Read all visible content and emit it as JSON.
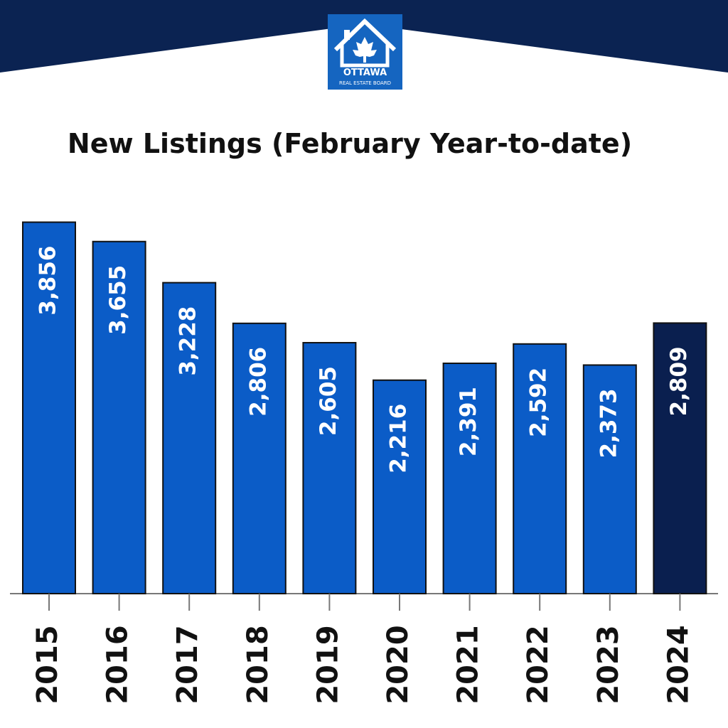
{
  "logo": {
    "name": "OTTAWA",
    "subtitle": "REAL ESTATE BOARD"
  },
  "chart_data": {
    "type": "bar",
    "title": "New Listings (February Year-to-date)",
    "categories": [
      "2015",
      "2016",
      "2017",
      "2018",
      "2019",
      "2020",
      "2021",
      "2022",
      "2023",
      "2024"
    ],
    "values": [
      3856,
      3655,
      3228,
      2806,
      2605,
      2216,
      2391,
      2592,
      2373,
      2809
    ],
    "value_labels": [
      "3,856",
      "3,655",
      "3,228",
      "2,806",
      "2,605",
      "2,216",
      "2,391",
      "2,592",
      "2,373",
      "2,809"
    ],
    "colors": [
      "#0b5cc7",
      "#0b5cc7",
      "#0b5cc7",
      "#0b5cc7",
      "#0b5cc7",
      "#0b5cc7",
      "#0b5cc7",
      "#0b5cc7",
      "#0b5cc7",
      "#0a1f4f"
    ],
    "ylim": [
      0,
      4000
    ]
  }
}
